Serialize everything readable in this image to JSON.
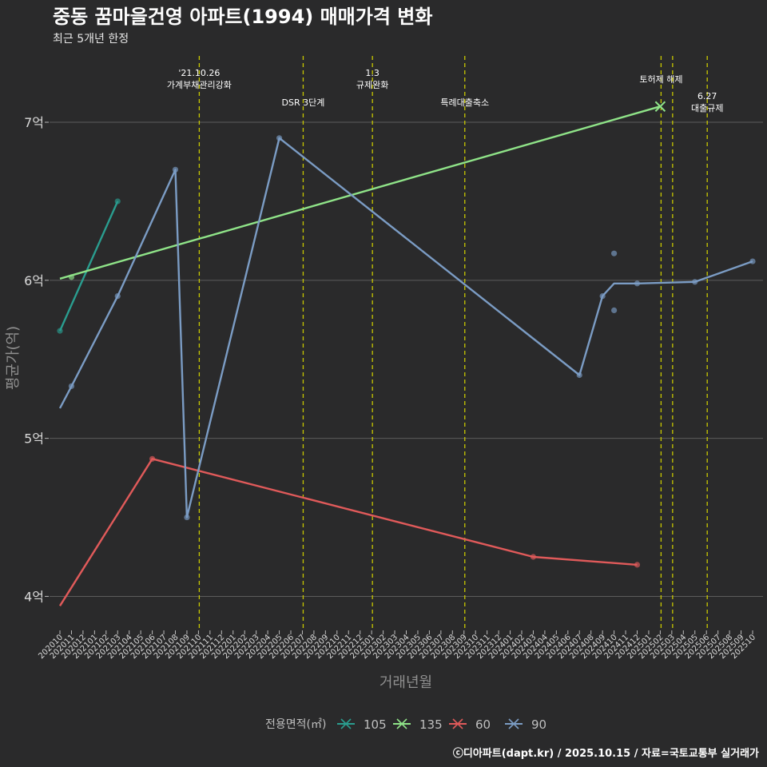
{
  "chart_data": {
    "type": "line",
    "title": "중동 꿈마을건영 아파트(1994) 매매가격 변화",
    "subtitle": "최근 5개년 한정",
    "xlabel": "거래년월",
    "ylabel": "평균가(억)",
    "caption": "ⓒ디아파트(dapt.kr) / 2025.10.15 / 자료=국토교통부 실거래가",
    "legend_title": "전용면적(㎡)",
    "legend_position": "bottom",
    "grid": true,
    "ylim": [
      3.8,
      7.45
    ],
    "y_ticks": [
      4,
      5,
      6,
      7
    ],
    "y_tick_labels": [
      "4억",
      "5억",
      "6억",
      "7억"
    ],
    "x_ticks": [
      "202010",
      "202011",
      "202012",
      "202101",
      "202102",
      "202103",
      "202104",
      "202105",
      "202106",
      "202107",
      "202108",
      "202109",
      "202110",
      "202111",
      "202112",
      "202201",
      "202202",
      "202203",
      "202204",
      "202205",
      "202206",
      "202207",
      "202208",
      "202209",
      "202210",
      "202211",
      "202212",
      "202301",
      "202302",
      "202303",
      "202304",
      "202305",
      "202306",
      "202307",
      "202308",
      "202309",
      "202310",
      "202311",
      "202312",
      "202401",
      "202402",
      "202403",
      "202404",
      "202405",
      "202406",
      "202407",
      "202408",
      "202409",
      "202410",
      "202411",
      "202412",
      "202501",
      "202502",
      "202503",
      "202504",
      "202505",
      "202506",
      "202507",
      "202508",
      "202509",
      "202510"
    ],
    "series": [
      {
        "name": "105",
        "color": "#2a9d8f",
        "marker": "dot",
        "line": [
          [
            0,
            5.68
          ],
          [
            5,
            6.5
          ]
        ],
        "points": [
          [
            0,
            5.68
          ],
          [
            5,
            6.5
          ]
        ]
      },
      {
        "name": "135",
        "color": "#8fe388",
        "marker": "dot",
        "line": [
          [
            0,
            6.01
          ],
          [
            52,
            7.1
          ]
        ],
        "points": [
          [
            1,
            6.02
          ]
        ],
        "x_markers": [
          [
            52,
            7.1
          ]
        ]
      },
      {
        "name": "60",
        "color": "#e05a5a",
        "marker": "dot",
        "line": [
          [
            0,
            3.94
          ],
          [
            8,
            4.87
          ],
          [
            41,
            4.25
          ],
          [
            50,
            4.2
          ]
        ],
        "points": [
          [
            8,
            4.87
          ],
          [
            41,
            4.25
          ],
          [
            50,
            4.2
          ]
        ]
      },
      {
        "name": "90",
        "color": "#7b9cc4",
        "marker": "dot",
        "line": [
          [
            0,
            5.19
          ],
          [
            1,
            5.33
          ],
          [
            5,
            5.9
          ],
          [
            10,
            6.7
          ],
          [
            11,
            4.5
          ],
          [
            19,
            6.9
          ],
          [
            45,
            5.4
          ],
          [
            47,
            5.9
          ],
          [
            48,
            5.98
          ],
          [
            50,
            5.98
          ],
          [
            55,
            5.99
          ],
          [
            60,
            6.12
          ]
        ],
        "points": [
          [
            1,
            5.33
          ],
          [
            5,
            5.9
          ],
          [
            10,
            6.7
          ],
          [
            11,
            4.5
          ],
          [
            19,
            6.9
          ],
          [
            45,
            5.4
          ],
          [
            47,
            5.9
          ],
          [
            48,
            6.17
          ],
          [
            48,
            5.81
          ],
          [
            50,
            5.98
          ],
          [
            55,
            5.99
          ],
          [
            60,
            6.12
          ]
        ]
      }
    ],
    "events": [
      {
        "x": 12,
        "lines": [
          "'21.10.26",
          "가계부채관리강화"
        ],
        "level": "high"
      },
      {
        "x": 21,
        "lines": [
          "DSR 3단계"
        ],
        "level": "low"
      },
      {
        "x": 27,
        "lines": [
          "1.3",
          "규제완화"
        ],
        "level": "high"
      },
      {
        "x": 35,
        "lines": [
          "특례대출축소"
        ],
        "level": "low"
      },
      {
        "x": 52,
        "lines": [
          "토허제 해제"
        ],
        "level": "mid"
      },
      {
        "x": 53,
        "lines": [],
        "level": "none"
      },
      {
        "x": 56,
        "lines": [
          "6.27",
          "대출규제"
        ],
        "level": "low2"
      }
    ],
    "event_line_color": "#c8c800"
  }
}
